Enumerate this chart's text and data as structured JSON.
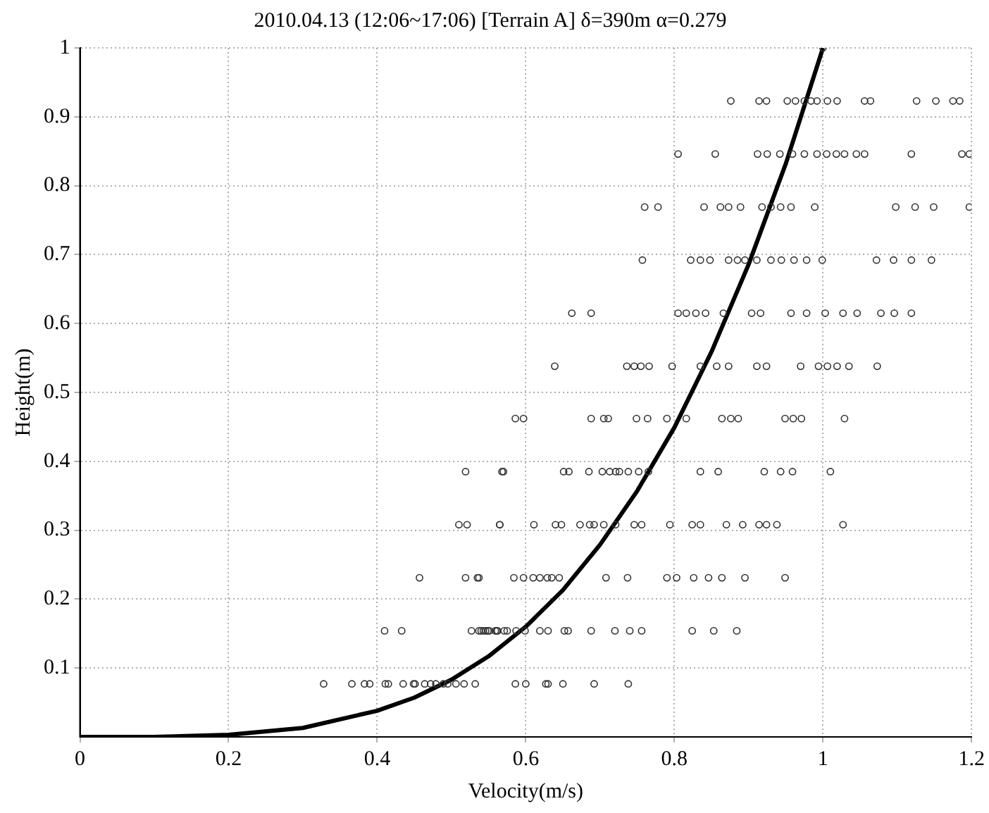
{
  "chart_data": {
    "type": "scatter",
    "title": "2010.04.13 (12:06~17:06) [Terrain A] δ=390m α=0.279",
    "xlabel": "Velocity(m/s)",
    "ylabel": "Height(m)",
    "xlim": [
      0,
      1.2
    ],
    "xticks": [
      0,
      0.2,
      0.4,
      0.6,
      0.8,
      1,
      1.2
    ],
    "ylim": [
      0,
      1
    ],
    "yticks": [
      0.1,
      0.2,
      0.3,
      0.4,
      0.5,
      0.6,
      0.7,
      0.8,
      0.9,
      1
    ],
    "grid": true,
    "legend": false,
    "series": [
      {
        "color": "#333333",
        "marker": "circle",
        "x": [
          0.328,
          0.366,
          0.383,
          0.39,
          0.411,
          0.415,
          0.435,
          0.449,
          0.451,
          0.464,
          0.472,
          0.479,
          0.489,
          0.495,
          0.506,
          0.517,
          0.532,
          0.586,
          0.6,
          0.627,
          0.63,
          0.65,
          0.692,
          0.738,
          0.41,
          0.433,
          0.527,
          0.54,
          0.546,
          0.551,
          0.559,
          0.562,
          0.571,
          0.543,
          0.549,
          0.561,
          0.575,
          0.587,
          0.599,
          0.619,
          0.63,
          0.652,
          0.657,
          0.688,
          0.72,
          0.74,
          0.756,
          0.824,
          0.853,
          0.884,
          0.537,
          0.457,
          0.519,
          0.535,
          0.537,
          0.584,
          0.597,
          0.61,
          0.619,
          0.629,
          0.635,
          0.645,
          0.708,
          0.737,
          0.79,
          0.803,
          0.826,
          0.846,
          0.864,
          0.895,
          0.949,
          0.51,
          0.521,
          0.565,
          0.565,
          0.611,
          0.64,
          0.648,
          0.673,
          0.686,
          0.692,
          0.705,
          0.721,
          0.746,
          0.756,
          0.794,
          0.824,
          0.835,
          0.87,
          0.892,
          0.914,
          0.924,
          0.938,
          1.027,
          0.519,
          0.568,
          0.57,
          0.651,
          0.658,
          0.685,
          0.703,
          0.713,
          0.721,
          0.726,
          0.738,
          0.752,
          0.765,
          0.835,
          0.859,
          0.921,
          0.943,
          0.959,
          1.01,
          0.586,
          0.597,
          0.688,
          0.705,
          0.711,
          0.749,
          0.764,
          0.79,
          0.816,
          0.864,
          0.876,
          0.886,
          0.949,
          0.96,
          0.971,
          1.029,
          0.639,
          0.736,
          0.746,
          0.755,
          0.766,
          0.797,
          0.835,
          0.857,
          0.873,
          0.911,
          0.924,
          0.97,
          0.994,
          1.006,
          1.019,
          1.035,
          1.073,
          0.662,
          0.688,
          0.805,
          0.816,
          0.829,
          0.842,
          0.866,
          0.904,
          0.916,
          0.957,
          0.978,
          1.003,
          1.027,
          1.046,
          1.078,
          1.096,
          1.119,
          0.757,
          0.822,
          0.835,
          0.848,
          0.873,
          0.885,
          0.895,
          0.911,
          0.93,
          0.944,
          0.961,
          0.978,
          0.999,
          1.072,
          1.095,
          1.119,
          1.146,
          0.76,
          0.778,
          0.84,
          0.862,
          0.873,
          0.889,
          0.918,
          0.93,
          0.943,
          0.957,
          0.989,
          1.098,
          1.124,
          1.149,
          1.197,
          0.805,
          0.855,
          0.912,
          0.925,
          0.942,
          0.959,
          0.975,
          0.992,
          1.005,
          1.018,
          1.029,
          1.045,
          1.056,
          1.119,
          1.187,
          1.197,
          0.876,
          0.914,
          0.924,
          0.952,
          0.963,
          0.975,
          0.984,
          0.992,
          1.006,
          1.019,
          1.056,
          1.064,
          1.126,
          1.152,
          1.175,
          1.184,
          1.0
        ],
        "values": [
          0.077,
          0.077,
          0.077,
          0.077,
          0.077,
          0.077,
          0.077,
          0.077,
          0.077,
          0.077,
          0.077,
          0.077,
          0.077,
          0.077,
          0.077,
          0.077,
          0.077,
          0.077,
          0.077,
          0.077,
          0.077,
          0.077,
          0.077,
          0.077,
          0.154,
          0.154,
          0.154,
          0.154,
          0.154,
          0.154,
          0.154,
          0.154,
          0.154,
          0.154,
          0.154,
          0.154,
          0.154,
          0.154,
          0.154,
          0.154,
          0.154,
          0.154,
          0.154,
          0.154,
          0.154,
          0.154,
          0.154,
          0.154,
          0.154,
          0.154,
          0.154,
          0.231,
          0.231,
          0.231,
          0.231,
          0.231,
          0.231,
          0.231,
          0.231,
          0.231,
          0.231,
          0.231,
          0.231,
          0.231,
          0.231,
          0.231,
          0.231,
          0.231,
          0.231,
          0.231,
          0.231,
          0.308,
          0.308,
          0.308,
          0.308,
          0.308,
          0.308,
          0.308,
          0.308,
          0.308,
          0.308,
          0.308,
          0.308,
          0.308,
          0.308,
          0.308,
          0.308,
          0.308,
          0.308,
          0.308,
          0.308,
          0.308,
          0.308,
          0.308,
          0.385,
          0.385,
          0.385,
          0.385,
          0.385,
          0.385,
          0.385,
          0.385,
          0.385,
          0.385,
          0.385,
          0.385,
          0.385,
          0.385,
          0.385,
          0.385,
          0.385,
          0.385,
          0.385,
          0.462,
          0.462,
          0.462,
          0.462,
          0.462,
          0.462,
          0.462,
          0.462,
          0.462,
          0.462,
          0.462,
          0.462,
          0.462,
          0.462,
          0.462,
          0.462,
          0.538,
          0.538,
          0.538,
          0.538,
          0.538,
          0.538,
          0.538,
          0.538,
          0.538,
          0.538,
          0.538,
          0.538,
          0.538,
          0.538,
          0.538,
          0.538,
          0.538,
          0.615,
          0.615,
          0.615,
          0.615,
          0.615,
          0.615,
          0.615,
          0.615,
          0.615,
          0.615,
          0.615,
          0.615,
          0.615,
          0.615,
          0.615,
          0.615,
          0.615,
          0.692,
          0.692,
          0.692,
          0.692,
          0.692,
          0.692,
          0.692,
          0.692,
          0.692,
          0.692,
          0.692,
          0.692,
          0.692,
          0.692,
          0.692,
          0.692,
          0.692,
          0.769,
          0.769,
          0.769,
          0.769,
          0.769,
          0.769,
          0.769,
          0.769,
          0.769,
          0.769,
          0.769,
          0.769,
          0.769,
          0.769,
          0.769,
          0.846,
          0.846,
          0.846,
          0.846,
          0.846,
          0.846,
          0.846,
          0.846,
          0.846,
          0.846,
          0.846,
          0.846,
          0.846,
          0.846,
          0.846,
          0.846,
          0.923,
          0.923,
          0.923,
          0.923,
          0.923,
          0.923,
          0.923,
          0.923,
          0.923,
          0.923,
          0.923,
          0.923,
          0.923,
          0.923,
          0.923,
          0.923,
          1.0
        ]
      },
      {
        "type": "line",
        "color": "#000000",
        "marker": "none",
        "line_style": "solid",
        "x": [
          0,
          0.1,
          0.2,
          0.3,
          0.4,
          0.45,
          0.5,
          0.55,
          0.6,
          0.65,
          0.7,
          0.75,
          0.8,
          0.85,
          0.9,
          0.95,
          1.0
        ],
        "values": [
          0,
          0,
          0.003,
          0.013,
          0.038,
          0.057,
          0.083,
          0.117,
          0.16,
          0.213,
          0.279,
          0.357,
          0.449,
          0.559,
          0.686,
          0.832,
          1.0
        ]
      }
    ]
  }
}
